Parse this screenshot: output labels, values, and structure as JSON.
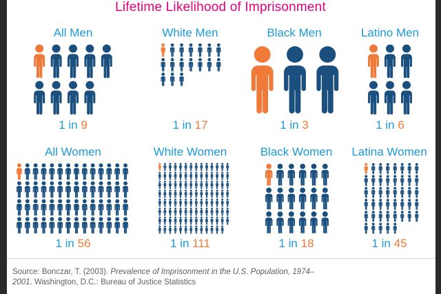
{
  "title": "Lifetime Likelihood of Imprisonment",
  "colors": {
    "title": "#e6007e",
    "label": "#1c9ad6",
    "highlight": "#f07a3a",
    "figure": "#1b4f7e"
  },
  "chart_data": {
    "type": "pictogram",
    "title": "Lifetime Likelihood of Imprisonment",
    "series": [
      {
        "name": "All Men",
        "prefix": "1 in",
        "value": 9
      },
      {
        "name": "White Men",
        "prefix": "1 in",
        "value": 17
      },
      {
        "name": "Black Men",
        "prefix": "1 in",
        "value": 3
      },
      {
        "name": "Latino Men",
        "prefix": "1 in",
        "value": 6
      },
      {
        "name": "All Women",
        "prefix": "1 in",
        "value": 56
      },
      {
        "name": "White Women",
        "prefix": "1 in",
        "value": 111
      },
      {
        "name": "Black Women",
        "prefix": "1 in",
        "value": 18
      },
      {
        "name": "Latina Women",
        "prefix": "1 in",
        "value": 45
      }
    ]
  },
  "source": {
    "lead": "Source: Bonczar, T. (2003). ",
    "work": "Prevalence of Imprisonment in the U.S. Population, 1974–2001",
    "tail": ". Washington, D.C.: Bureau of Justice Statistics"
  }
}
